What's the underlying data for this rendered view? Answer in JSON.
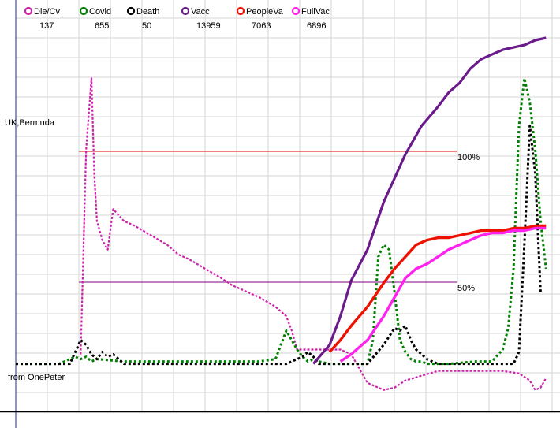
{
  "chart_data": {
    "type": "line",
    "title": "",
    "xlabel": "",
    "ylabel": "",
    "grid": true,
    "legend_position": "top",
    "region_label": "UK,Bermuda",
    "credit": "from OnePeter",
    "reference_lines": [
      {
        "label": "100%",
        "value": 100,
        "color": "#dd0000"
      },
      {
        "label": "50%",
        "value": 50,
        "color": "#800080"
      }
    ],
    "series": [
      {
        "name": "Die/Cv",
        "value": "137",
        "color": "#cc22aa",
        "x": [
          0.12,
          0.13,
          0.14,
          0.145,
          0.15,
          0.16,
          0.17,
          0.18,
          0.2,
          0.22,
          0.25,
          0.28,
          0.3,
          0.32,
          0.35,
          0.38,
          0.4,
          0.42,
          0.45,
          0.48,
          0.5,
          0.51,
          0.52,
          0.55,
          0.6,
          0.62,
          0.65,
          0.68,
          0.7,
          0.72,
          0.75,
          0.78,
          0.8,
          0.85,
          0.9,
          0.93,
          0.95,
          0.96,
          0.97,
          0.98
        ],
        "y": [
          4,
          90,
          120,
          80,
          60,
          52,
          48,
          65,
          60,
          58,
          54,
          50,
          46,
          44,
          40,
          36,
          33,
          31,
          28,
          24,
          20,
          14,
          6,
          6,
          6,
          4,
          -8,
          -11,
          -10,
          -7,
          -5,
          -3,
          -3,
          -3,
          -3,
          -4,
          -7,
          -11,
          -10,
          -6
        ]
      },
      {
        "name": "Covid",
        "value": "655",
        "color": "#008000",
        "x": [
          0.0,
          0.08,
          0.1,
          0.11,
          0.12,
          0.13,
          0.14,
          0.15,
          0.2,
          0.3,
          0.35,
          0.4,
          0.45,
          0.48,
          0.5,
          0.52,
          0.53,
          0.54,
          0.55,
          0.56,
          0.58,
          0.6,
          0.65,
          0.66,
          0.67,
          0.68,
          0.69,
          0.7,
          0.71,
          0.72,
          0.73,
          0.74,
          0.75,
          0.76,
          0.8,
          0.85,
          0.88,
          0.9,
          0.91,
          0.92,
          0.93,
          0.94,
          0.95,
          0.96,
          0.97,
          0.98
        ],
        "y": [
          0,
          0,
          2,
          3,
          2,
          3,
          1,
          2,
          1,
          1,
          1,
          1,
          1,
          2,
          14,
          6,
          3,
          1,
          2,
          1,
          0,
          0,
          0,
          10,
          45,
          50,
          48,
          30,
          10,
          5,
          2,
          1,
          1,
          0,
          0,
          1,
          1,
          6,
          15,
          40,
          100,
          120,
          110,
          90,
          60,
          40
        ]
      },
      {
        "name": "Death",
        "value": "50",
        "color": "#000000",
        "x": [
          0.0,
          0.1,
          0.12,
          0.13,
          0.14,
          0.15,
          0.16,
          0.17,
          0.18,
          0.2,
          0.25,
          0.3,
          0.4,
          0.45,
          0.5,
          0.53,
          0.54,
          0.55,
          0.56,
          0.6,
          0.65,
          0.68,
          0.7,
          0.71,
          0.72,
          0.73,
          0.74,
          0.75,
          0.76,
          0.78,
          0.8,
          0.85,
          0.9,
          0.92,
          0.93,
          0.94,
          0.95,
          0.96,
          0.97
        ],
        "y": [
          0,
          0,
          10,
          8,
          4,
          2,
          5,
          3,
          4,
          0,
          0,
          0,
          0,
          0,
          0,
          3,
          5,
          3,
          0,
          0,
          0,
          8,
          15,
          14,
          16,
          10,
          6,
          4,
          2,
          0,
          0,
          0,
          0,
          0,
          5,
          50,
          100,
          80,
          30
        ]
      },
      {
        "name": "Vacc",
        "value": "13959",
        "color": "#6a1a8a",
        "x": [
          0.55,
          0.58,
          0.6,
          0.62,
          0.65,
          0.68,
          0.7,
          0.72,
          0.75,
          0.78,
          0.8,
          0.82,
          0.84,
          0.86,
          0.88,
          0.9,
          0.92,
          0.94,
          0.96,
          0.98
        ],
        "y": [
          0,
          8,
          20,
          35,
          48,
          68,
          78,
          88,
          100,
          108,
          114,
          118,
          124,
          128,
          130,
          132,
          133,
          134,
          136,
          137
        ]
      },
      {
        "name": "PeopleVa",
        "value": "7063",
        "color": "#ee1100",
        "x": [
          0.58,
          0.6,
          0.62,
          0.65,
          0.68,
          0.7,
          0.72,
          0.74,
          0.76,
          0.78,
          0.8,
          0.82,
          0.84,
          0.86,
          0.88,
          0.9,
          0.92,
          0.94,
          0.96,
          0.98
        ],
        "y": [
          5,
          10,
          16,
          24,
          34,
          40,
          45,
          50,
          52,
          53,
          53,
          54,
          55,
          56,
          56,
          56,
          57,
          57,
          58,
          58
        ]
      },
      {
        "name": "FullVac",
        "value": "6896",
        "color": "#ff22ee",
        "x": [
          0.6,
          0.62,
          0.65,
          0.68,
          0.7,
          0.72,
          0.74,
          0.76,
          0.78,
          0.8,
          0.82,
          0.84,
          0.86,
          0.88,
          0.9,
          0.92,
          0.94,
          0.96,
          0.98
        ],
        "y": [
          1,
          4,
          10,
          20,
          28,
          36,
          40,
          42,
          45,
          48,
          50,
          52,
          54,
          55,
          55,
          56,
          56,
          57,
          57
        ]
      }
    ]
  }
}
